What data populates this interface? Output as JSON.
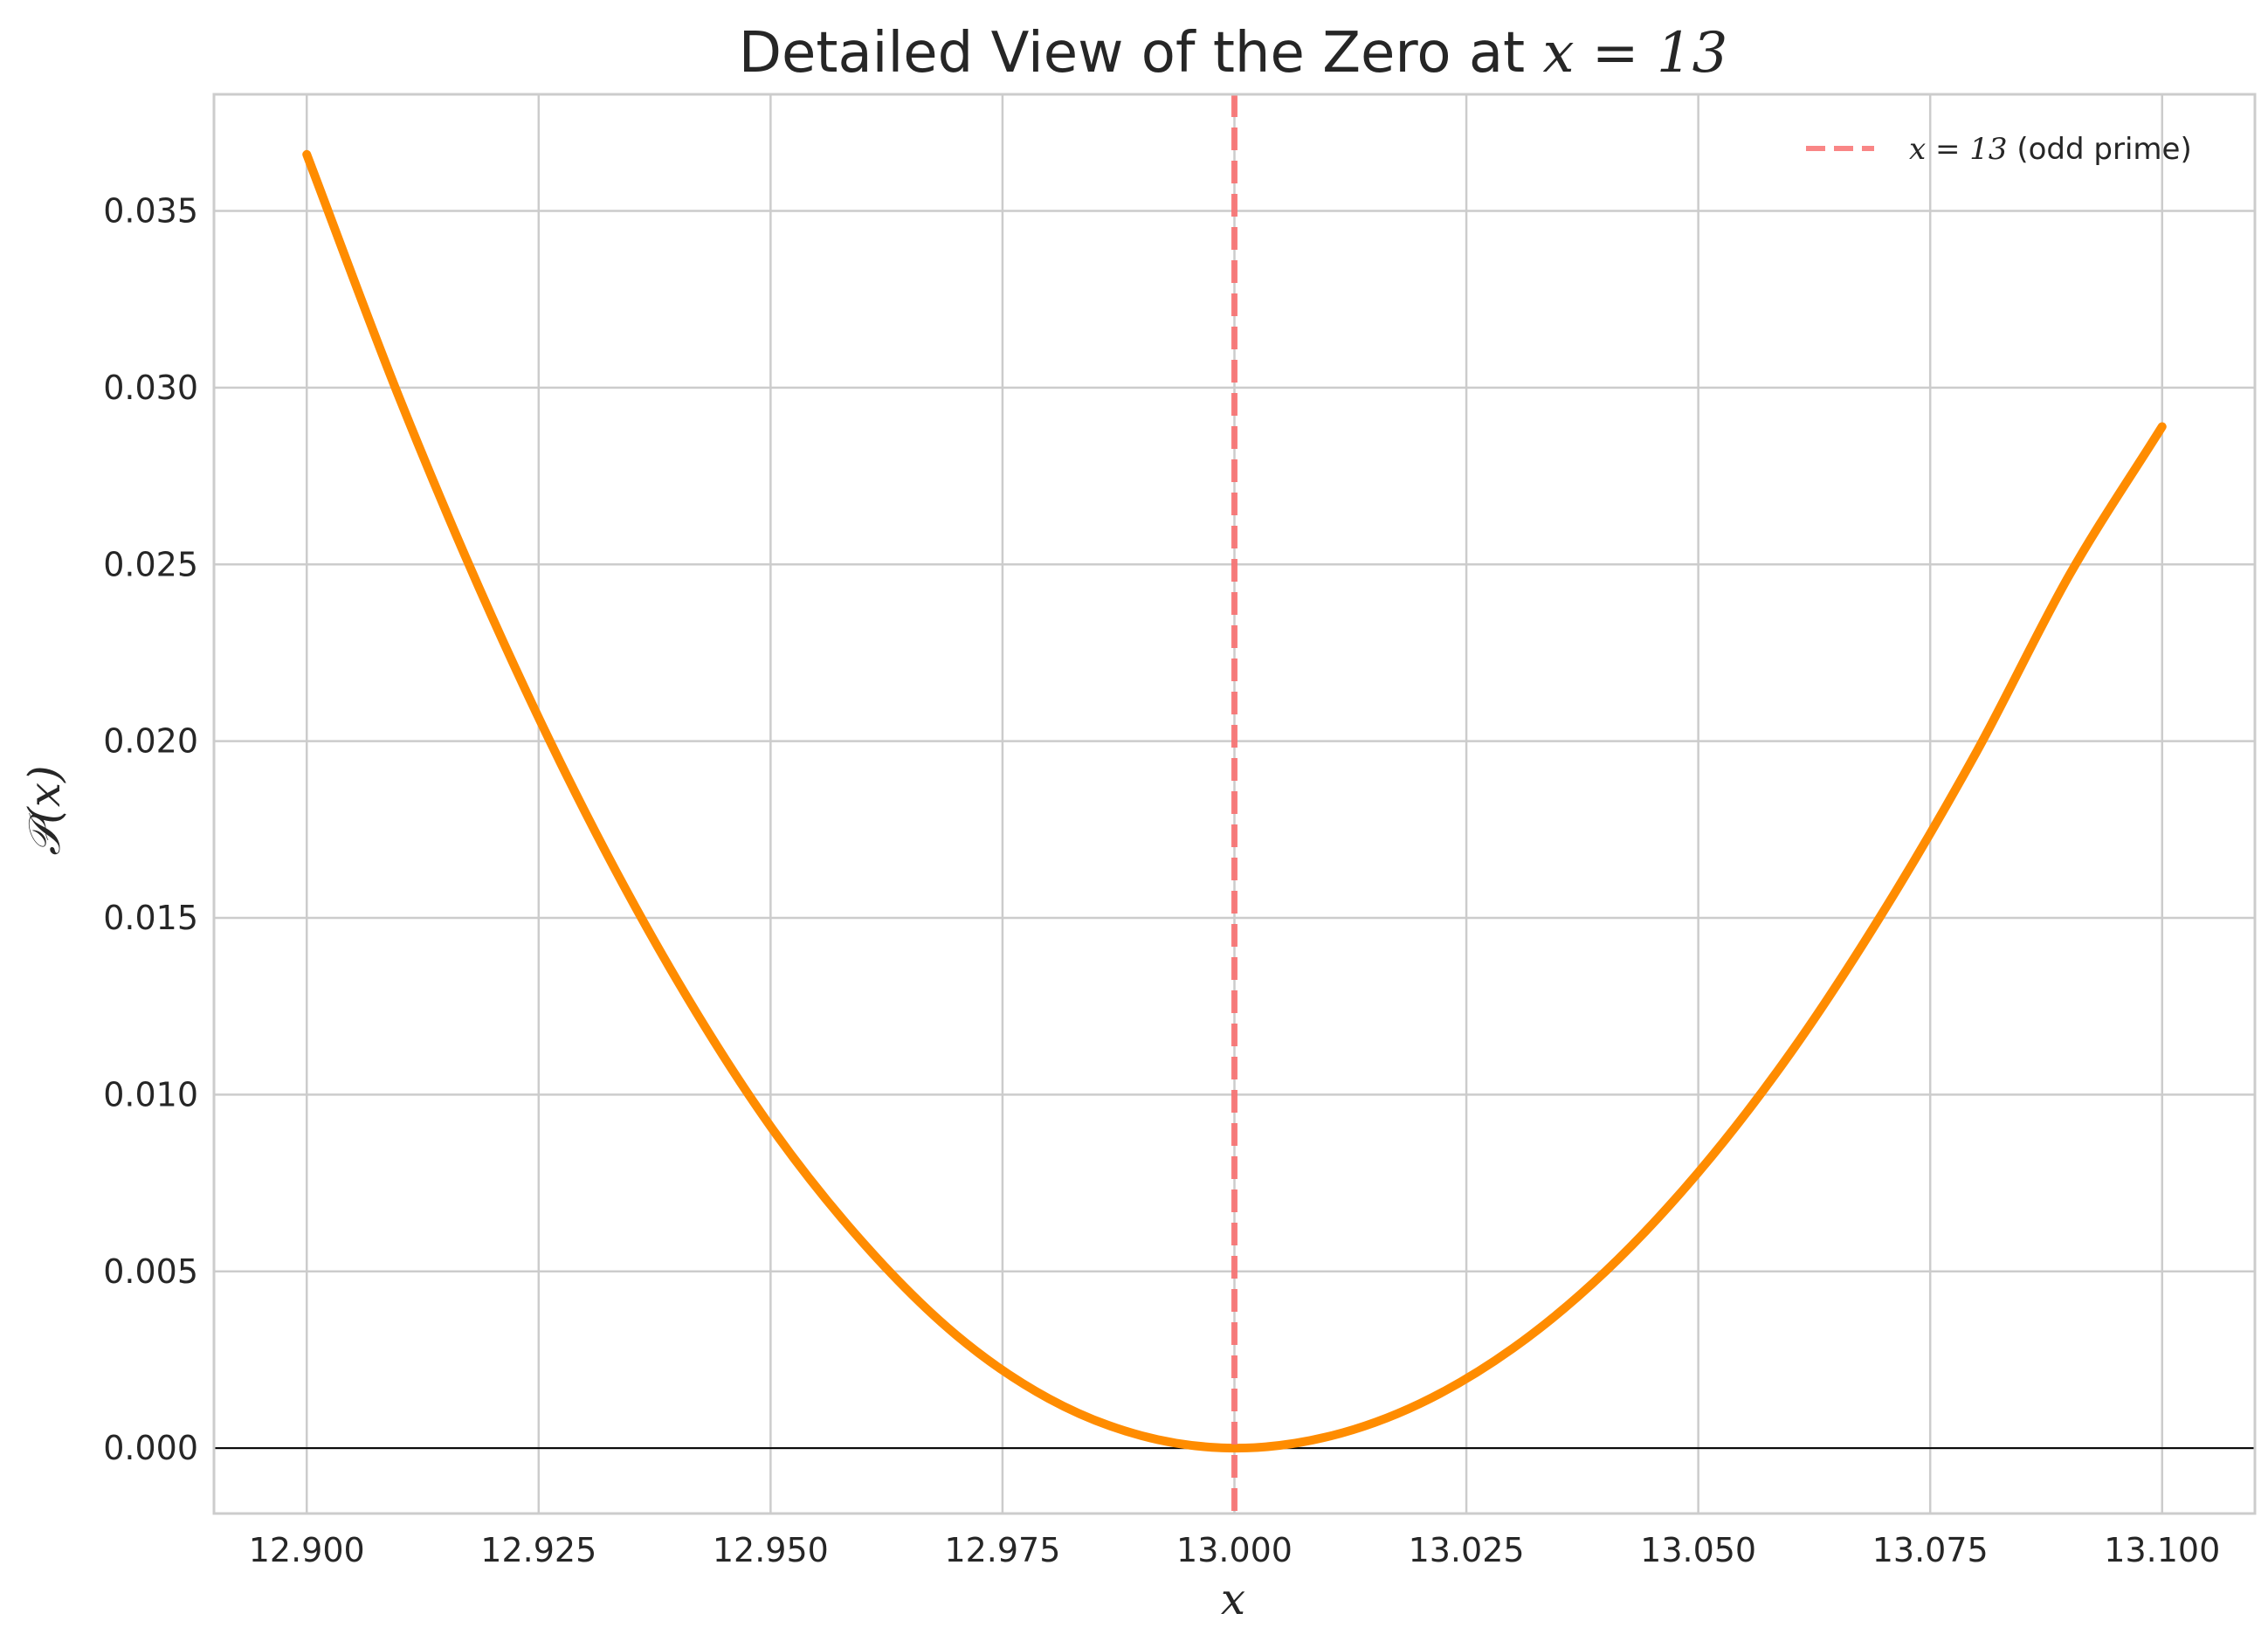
{
  "chart_data": {
    "type": "line",
    "title_prefix": "Detailed View of the Zero at ",
    "title_math": "x = 13",
    "xlabel": "x",
    "ylabel": "𝒫(x)",
    "xlim": [
      12.89,
      13.11
    ],
    "ylim": [
      -0.00185,
      0.0383
    ],
    "x_ticks": [
      12.9,
      12.925,
      12.95,
      12.975,
      13.0,
      13.025,
      13.05,
      13.075,
      13.1
    ],
    "x_tick_labels": [
      "12.900",
      "12.925",
      "12.950",
      "12.975",
      "13.000",
      "13.025",
      "13.050",
      "13.075",
      "13.100"
    ],
    "y_ticks": [
      0.0,
      0.005,
      0.01,
      0.015,
      0.02,
      0.025,
      0.03,
      0.035
    ],
    "y_tick_labels": [
      "0.000",
      "0.005",
      "0.010",
      "0.015",
      "0.020",
      "0.025",
      "0.030",
      "0.035"
    ],
    "grid": true,
    "legend_position": "top-right",
    "zero_line": true,
    "series": [
      {
        "color": "#ff8c00",
        "x": [
          12.9,
          12.91,
          12.92,
          12.93,
          12.94,
          12.95,
          12.96,
          12.97,
          12.98,
          12.99,
          13.0,
          13.01,
          13.02,
          13.03,
          13.04,
          13.05,
          13.06,
          13.07,
          13.08,
          13.09,
          13.1
        ],
        "y": [
          0.0366,
          0.0297,
          0.0235,
          0.018,
          0.0132,
          0.0091,
          0.0058,
          0.0032,
          0.0014,
          0.00035,
          0.0,
          0.00032,
          0.00126,
          0.00282,
          0.005,
          0.0078,
          0.0112,
          0.0152,
          0.0197,
          0.0247,
          0.0289
        ]
      }
    ],
    "vline": {
      "x": 13.0,
      "color": "#f87171",
      "legend_math": "x = 13",
      "legend_suffix": " (odd prime)"
    }
  }
}
